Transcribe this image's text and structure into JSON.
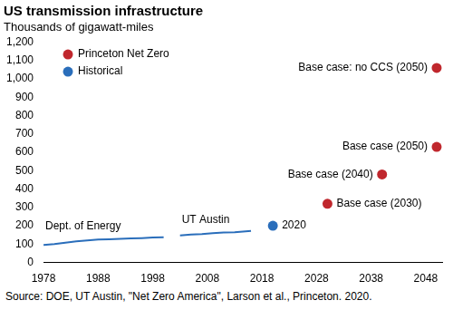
{
  "chart_data": {
    "type": "line",
    "title": "US transmission infrastructure",
    "subtitle": "Thousands of gigawatt-miles",
    "source": "Source: DOE, UT Austin, \"Net Zero America\", Larson et al., Princeton. 2020.",
    "xlim": [
      1978,
      2051
    ],
    "xticks": [
      1978,
      1988,
      1998,
      2008,
      2018,
      2028,
      2038,
      2048
    ],
    "ylim": [
      0,
      1200
    ],
    "yticks": [
      0,
      100,
      200,
      300,
      400,
      500,
      600,
      700,
      800,
      900,
      {
        "value": 1000,
        "label": "1,000"
      },
      {
        "value": 1100,
        "label": "1,100"
      },
      {
        "value": 1200,
        "label": "1,200"
      }
    ],
    "grid": false,
    "legend": "upper left",
    "series": [
      {
        "name": "Princeton Net Zero",
        "type": "scatter",
        "marker": "circle",
        "color": "#c0272d",
        "x": [
          2030,
          2040,
          2050,
          2050
        ],
        "values": [
          320,
          480,
          630,
          1060
        ],
        "point_labels": [
          "Base case (2030)",
          "Base case (2040)",
          "Base case (2050)",
          "Base case: no CCS (2050)"
        ]
      },
      {
        "name": "Historical",
        "type": "scatter",
        "marker": "circle",
        "color": "#2a6ebb",
        "x": [
          2020
        ],
        "values": [
          200
        ],
        "point_labels": [
          "2020"
        ]
      },
      {
        "name": "Dept. of Energy",
        "type": "line",
        "color": "#2a6ebb",
        "x": [
          1978,
          1980,
          1982,
          1984,
          1986,
          1988,
          1990,
          1992,
          1994,
          1996,
          1998,
          2000
        ],
        "values": [
          95,
          100,
          108,
          115,
          120,
          125,
          127,
          129,
          131,
          133,
          136,
          138
        ]
      },
      {
        "name": "UT Austin",
        "type": "line",
        "color": "#2a6ebb",
        "x": [
          2003,
          2005,
          2007,
          2009,
          2011,
          2013,
          2015,
          2016
        ],
        "values": [
          148,
          152,
          155,
          160,
          163,
          165,
          170,
          172
        ]
      }
    ]
  }
}
